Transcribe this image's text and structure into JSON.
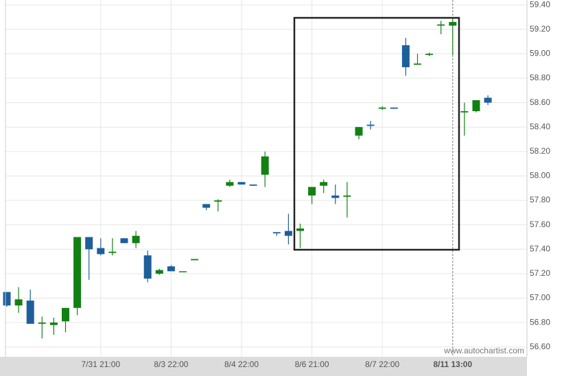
{
  "chart_data": {
    "type": "candlestick",
    "watermark": "www.autochartist.com",
    "categories": [
      null,
      null,
      null,
      null,
      null,
      null,
      null,
      null,
      "7/31 21:00",
      null,
      null,
      null,
      null,
      null,
      "8/3 22:00",
      null,
      null,
      null,
      null,
      null,
      "8/4 22:00",
      null,
      null,
      null,
      null,
      null,
      "8/6 21:00",
      null,
      null,
      null,
      null,
      null,
      "8/7 22:00",
      null,
      null,
      null,
      null,
      null,
      "8/11 13:00",
      null,
      null,
      null
    ],
    "open": [
      57.05,
      56.94,
      56.98,
      56.79,
      56.78,
      56.81,
      56.92,
      57.5,
      57.41,
      57.37,
      57.49,
      57.45,
      57.35,
      57.2,
      57.26,
      57.22,
      57.31,
      57.77,
      57.79,
      57.92,
      57.95,
      57.93,
      58.01,
      57.54,
      57.55,
      57.55,
      57.84,
      57.92,
      57.84,
      57.83,
      58.33,
      58.42,
      58.55,
      58.56,
      59.07,
      58.91,
      58.99,
      59.23,
      59.23,
      58.52,
      58.53,
      58.64
    ],
    "high": [
      57.05,
      57.09,
      57.07,
      56.85,
      56.84,
      56.92,
      57.5,
      57.5,
      57.49,
      57.49,
      57.49,
      57.55,
      57.39,
      57.24,
      57.27,
      57.22,
      57.32,
      57.77,
      57.81,
      57.97,
      57.95,
      57.93,
      58.2,
      57.54,
      57.69,
      57.61,
      57.91,
      57.97,
      57.93,
      57.95,
      58.4,
      58.45,
      58.57,
      58.56,
      59.13,
      59.0,
      59.01,
      59.27,
      59.29,
      58.6,
      58.62,
      58.66
    ],
    "low": [
      56.93,
      56.88,
      56.79,
      56.67,
      56.7,
      56.72,
      56.86,
      57.15,
      57.35,
      57.35,
      57.45,
      57.41,
      57.13,
      57.19,
      57.22,
      57.22,
      57.31,
      57.72,
      57.71,
      57.91,
      57.93,
      57.92,
      57.91,
      57.51,
      57.44,
      57.41,
      57.77,
      57.86,
      57.77,
      57.66,
      58.3,
      58.38,
      58.54,
      58.55,
      58.82,
      58.91,
      58.98,
      59.16,
      58.99,
      58.33,
      58.52,
      58.58
    ],
    "close": [
      56.94,
      56.99,
      56.79,
      56.8,
      56.8,
      56.92,
      57.5,
      57.4,
      57.36,
      57.38,
      57.45,
      57.51,
      57.16,
      57.23,
      57.22,
      57.22,
      57.32,
      57.74,
      57.8,
      57.95,
      57.93,
      57.92,
      58.16,
      57.53,
      57.51,
      57.57,
      57.91,
      57.95,
      57.82,
      57.84,
      58.4,
      58.41,
      58.56,
      58.55,
      58.89,
      58.92,
      59.0,
      59.24,
      59.26,
      58.53,
      58.62,
      58.6
    ],
    "up_color": "#138013",
    "down_color": "#1d5f9b",
    "ylim": [
      56.52,
      59.44
    ],
    "yticks": [
      {
        "value": 56.6,
        "label": "56.60"
      },
      {
        "value": 56.8,
        "label": "56.80"
      },
      {
        "value": 57.0,
        "label": "57.00"
      },
      {
        "value": 57.2,
        "label": "57.20"
      },
      {
        "value": 57.4,
        "label": "57.40"
      },
      {
        "value": 57.6,
        "label": "57.60"
      },
      {
        "value": 57.8,
        "label": "57.80"
      },
      {
        "value": 58.0,
        "label": "58.00"
      },
      {
        "value": 58.2,
        "label": "58.20"
      },
      {
        "value": 58.4,
        "label": "58.40"
      },
      {
        "value": 58.6,
        "label": "58.60"
      },
      {
        "value": 58.8,
        "label": "58.80"
      },
      {
        "value": 59.0,
        "label": "59.00"
      },
      {
        "value": 59.2,
        "label": "59.20"
      },
      {
        "value": 59.4,
        "label": "59.40"
      }
    ],
    "grid": true
  }
}
